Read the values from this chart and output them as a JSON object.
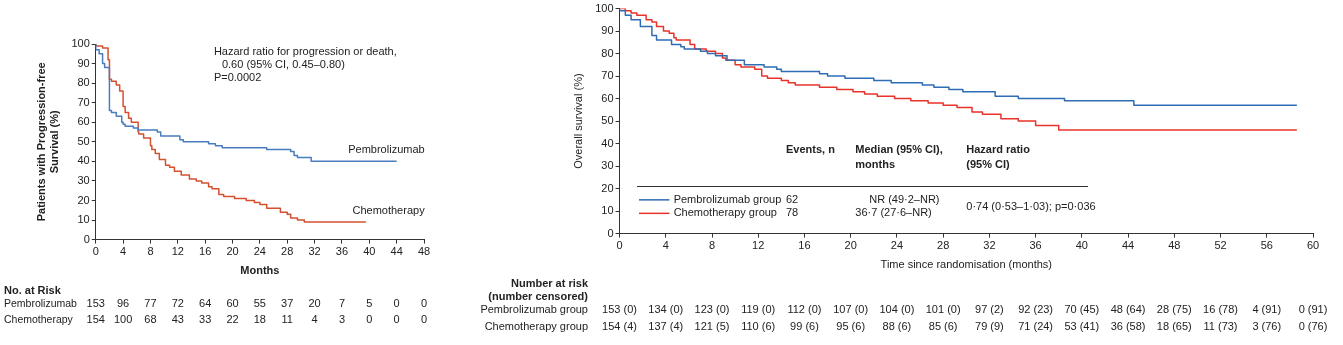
{
  "chart_data": [
    {
      "type": "step",
      "xlabel": "Months",
      "ylabel": "Patients with Progression-free\nSurvival (%)",
      "xlim": [
        0,
        48
      ],
      "xticks": [
        0,
        4,
        8,
        12,
        16,
        20,
        24,
        28,
        32,
        36,
        40,
        44,
        48
      ],
      "ylim": [
        0,
        100
      ],
      "yticks": [
        0,
        10,
        20,
        30,
        40,
        50,
        60,
        70,
        80,
        90,
        100
      ],
      "grid": false,
      "legend": false,
      "series": [
        {
          "name": "Pembrolizumab",
          "color": "#4a7cc0",
          "x": [
            0,
            0.5,
            1,
            1.3,
            2,
            2.3,
            3,
            3.8,
            4,
            4.3,
            5.5,
            6.2,
            9,
            9.5,
            12.3,
            12.8,
            16.5,
            17.5,
            18.5,
            25,
            28.5,
            29,
            29.5,
            31.5,
            32.5,
            44
          ],
          "values": [
            100,
            97,
            95,
            90,
            88,
            66,
            65,
            63,
            60,
            59,
            58,
            57,
            56,
            55,
            53,
            51,
            50,
            49,
            48,
            47,
            46,
            45,
            43,
            42,
            40,
            40
          ]
        },
        {
          "name": "Chemotherapy",
          "color": "#d4502f",
          "x": [
            0,
            1,
            1.8,
            2,
            2.3,
            3,
            3.5,
            4,
            4.3,
            4.8,
            5.2,
            6.2,
            6.3,
            7,
            8,
            8.2,
            8.7,
            9.3,
            10.2,
            10.8,
            11.5,
            12.5,
            13.7,
            14.7,
            15.5,
            16.5,
            17,
            18,
            18.7,
            20.3,
            22,
            23.2,
            24,
            25,
            27,
            28,
            28.5,
            29.5,
            30.5,
            31,
            39.5
          ],
          "values": [
            100,
            99,
            98,
            92,
            82,
            81,
            79,
            76,
            68,
            65,
            62,
            60,
            55,
            54,
            52,
            48,
            46,
            44,
            41,
            38,
            37,
            35,
            33,
            31,
            30,
            29,
            27,
            26,
            23,
            22,
            21,
            20,
            19,
            18,
            16,
            14,
            13,
            11,
            10,
            9,
            9
          ]
        }
      ],
      "annotations": [
        "Hazard ratio for progression or death,",
        "0.60 (95% CI, 0.45–0.80)",
        "P=0.0002",
        "No. at Risk",
        "Pembrolizumab\t153\t96\t77\t72\t64\t60\t55\t37\t20\t7\t5\t0\t0",
        "Chemotherapy\t154\t100\t68\t43\t33\t22\t18\t11\t4\t3\t0\t0\t0"
      ]
    },
    {
      "type": "step",
      "xlabel": "Time since randomisation (months)",
      "ylabel": "Overall survival (%)",
      "xlim": [
        0,
        60
      ],
      "xticks": [
        0,
        4,
        8,
        12,
        16,
        20,
        24,
        28,
        32,
        36,
        40,
        44,
        48,
        52,
        56,
        60
      ],
      "ylim": [
        0,
        100
      ],
      "yticks": [
        0,
        10,
        20,
        30,
        40,
        50,
        60,
        70,
        80,
        90,
        100
      ],
      "grid": false,
      "legend": "bottom left",
      "series": [
        {
          "name": "Pembrolizumab group",
          "color": "#2e6db4",
          "x": [
            0,
            0.5,
            1,
            1.8,
            2.8,
            3.2,
            4.5,
            5.3,
            5.6,
            7,
            7.6,
            8.3,
            9.3,
            10.8,
            12.5,
            13.6,
            14,
            17.3,
            18,
            19.5,
            22,
            23.5,
            26.2,
            27.2,
            28.5,
            29.7,
            32.5,
            34.5,
            38.5,
            44.5,
            49.2,
            58.6
          ],
          "values": [
            100,
            99,
            97,
            95,
            92,
            88,
            86,
            84,
            83,
            82,
            81,
            80,
            79,
            77,
            75,
            74,
            73,
            72,
            71,
            70,
            69,
            68,
            67,
            66,
            65,
            64,
            63,
            61,
            60,
            59,
            57,
            57
          ]
        },
        {
          "name": "Chemotherapy group",
          "color": "#e8332a",
          "x": [
            0,
            0.5,
            1,
            1.5,
            2.3,
            2.8,
            3.2,
            3.8,
            4.3,
            4.7,
            4.9,
            6.1,
            6.5,
            7.5,
            8.3,
            8.9,
            9.2,
            10,
            10.5,
            11.7,
            12.3,
            12.8,
            14,
            14.6,
            15.2,
            17.3,
            18.8,
            20.2,
            21.2,
            22.3,
            23.8,
            25.2,
            26.7,
            28,
            29.2,
            30.5,
            31.4,
            33,
            34.5,
            36,
            38,
            45.4,
            58.6
          ],
          "values": [
            100,
            100,
            99,
            98,
            97,
            95,
            94,
            92,
            90,
            89,
            87,
            86,
            84,
            82,
            81,
            80,
            78,
            77,
            75,
            74,
            73,
            70,
            69,
            68,
            67,
            66,
            65,
            64,
            63,
            62,
            61,
            60,
            59,
            58,
            57,
            56,
            54,
            53,
            51,
            50,
            48,
            46,
            46
          ]
        }
      ],
      "annotations": [
        "Events, n",
        "Median (95% CI),\nmonths",
        "Hazard ratio\n(95% CI)",
        "62",
        "NR (49·2–NR)",
        "78",
        "36·7 (27·6–NR)",
        "0·74 (0·53–1·03); p=0·036",
        "Number at risk\n(number censored)",
        "Pembrolizumab group\t153 (0)\t134 (0)\t123 (0)\t119 (0)\t112 (0)\t107 (0)\t104 (0)\t101 (0)\t97 (2)\t92 (23)\t70 (45)\t48 (64)\t28 (75)\t16 (78)\t4 (91)\t0 (91)",
        "Chemotherapy group\t154 (4)\t137 (4)\t121 (5)\t110 (6)\t99 (6)\t95 (6)\t88 (6)\t85 (6)\t79 (9)\t71 (24)\t53 (41)\t36 (58)\t18 (65)\t11 (73)\t3 (76)\t0 (76)"
      ]
    }
  ]
}
